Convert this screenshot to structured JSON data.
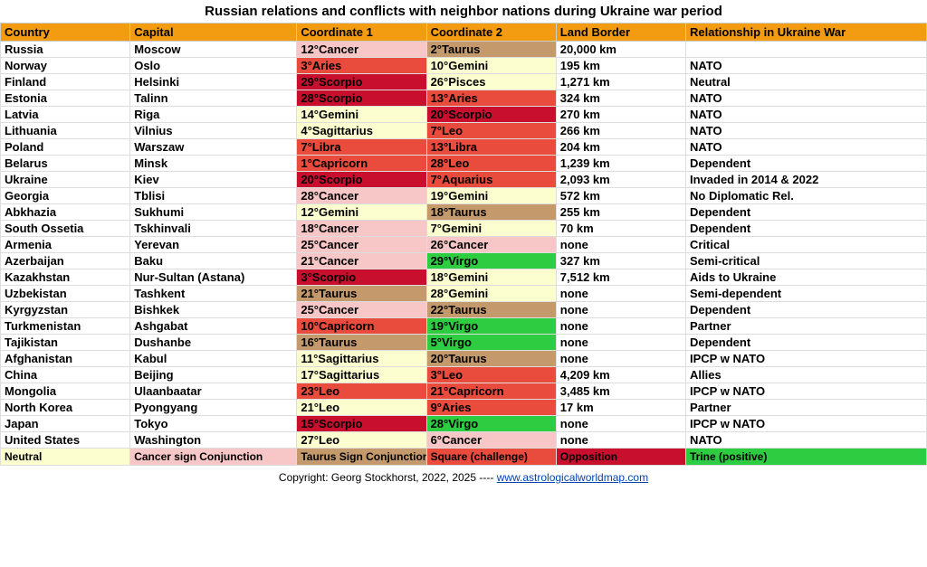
{
  "title": "Russian relations and conflicts with neighbor nations during Ukraine war period",
  "colors": {
    "header_bg": "#f39c12",
    "neutral": "#fdfecf",
    "cancer_conj": "#f7c6c6",
    "taurus_conj": "#c49a6c",
    "square": "#e94b3c",
    "opposition": "#c8102e",
    "trine": "#2ecc40",
    "white": "#ffffff"
  },
  "col_widths": [
    "14%",
    "18%",
    "14%",
    "14%",
    "14%",
    "26%"
  ],
  "headers": [
    "Country",
    "Capital",
    "Coordinate 1",
    "Coordinate 2",
    "Land Border",
    "Relationship in Ukraine War"
  ],
  "rows": [
    {
      "c": [
        "Russia",
        "Moscow",
        "12°Cancer",
        "2°Taurus",
        "20,000 km",
        ""
      ],
      "bg": [
        "white",
        "white",
        "cancer_conj",
        "taurus_conj",
        "white",
        "white"
      ]
    },
    {
      "c": [
        "Norway",
        "Oslo",
        "3°Aries",
        "10°Gemini",
        "195 km",
        "NATO"
      ],
      "bg": [
        "white",
        "white",
        "square",
        "neutral",
        "white",
        "white"
      ]
    },
    {
      "c": [
        "Finland",
        "Helsinki",
        "29°Scorpio",
        "26°Pisces",
        "1,271 km",
        "Neutral"
      ],
      "bg": [
        "white",
        "white",
        "opposition",
        "neutral",
        "white",
        "white"
      ]
    },
    {
      "c": [
        "Estonia",
        "Talinn",
        "28°Scorpio",
        "13°Aries",
        "324 km",
        "NATO"
      ],
      "bg": [
        "white",
        "white",
        "opposition",
        "square",
        "white",
        "white"
      ]
    },
    {
      "c": [
        "Latvia",
        "Riga",
        "14°Gemini",
        "20°Scorpio",
        "270 km",
        "NATO"
      ],
      "bg": [
        "white",
        "white",
        "neutral",
        "opposition",
        "white",
        "white"
      ]
    },
    {
      "c": [
        "Lithuania",
        "Vilnius",
        "4°Sagittarius",
        "7°Leo",
        "266 km",
        "NATO"
      ],
      "bg": [
        "white",
        "white",
        "neutral",
        "square",
        "white",
        "white"
      ]
    },
    {
      "c": [
        "Poland",
        "Warszaw",
        "7°Libra",
        "13°Libra",
        "204 km",
        "NATO"
      ],
      "bg": [
        "white",
        "white",
        "square",
        "square",
        "white",
        "white"
      ]
    },
    {
      "c": [
        "Belarus",
        "Minsk",
        "1°Capricorn",
        "28°Leo",
        "1,239 km",
        "Dependent"
      ],
      "bg": [
        "white",
        "white",
        "square",
        "square",
        "white",
        "white"
      ]
    },
    {
      "c": [
        "Ukraine",
        "Kiev",
        "20°Scorpio",
        "7°Aquarius",
        "2,093 km",
        "Invaded in 2014 & 2022"
      ],
      "bg": [
        "white",
        "white",
        "opposition",
        "square",
        "white",
        "white"
      ]
    },
    {
      "c": [
        "Georgia",
        "Tblisi",
        "28°Cancer",
        "19°Gemini",
        "572 km",
        "No Diplomatic Rel."
      ],
      "bg": [
        "white",
        "white",
        "cancer_conj",
        "neutral",
        "white",
        "white"
      ]
    },
    {
      "c": [
        "Abkhazia",
        "Sukhumi",
        "12°Gemini",
        "18°Taurus",
        "255 km",
        "Dependent"
      ],
      "bg": [
        "white",
        "white",
        "neutral",
        "taurus_conj",
        "white",
        "white"
      ]
    },
    {
      "c": [
        "South Ossetia",
        "Tskhinvali",
        "18°Cancer",
        "7°Gemini",
        "70 km",
        "Dependent"
      ],
      "bg": [
        "white",
        "white",
        "cancer_conj",
        "neutral",
        "white",
        "white"
      ]
    },
    {
      "c": [
        "Armenia",
        "Yerevan",
        "25°Cancer",
        "26°Cancer",
        "none",
        "Critical"
      ],
      "bg": [
        "white",
        "white",
        "cancer_conj",
        "cancer_conj",
        "white",
        "white"
      ]
    },
    {
      "c": [
        "Azerbaijan",
        "Baku",
        "21°Cancer",
        "29°Virgo",
        "327 km",
        "Semi-critical"
      ],
      "bg": [
        "white",
        "white",
        "cancer_conj",
        "trine",
        "white",
        "white"
      ]
    },
    {
      "c": [
        "Kazakhstan",
        "Nur-Sultan (Astana)",
        "3°Scorpio",
        "18°Gemini",
        "7,512 km",
        "Aids to Ukraine"
      ],
      "bg": [
        "white",
        "white",
        "opposition",
        "neutral",
        "white",
        "white"
      ]
    },
    {
      "c": [
        "Uzbekistan",
        "Tashkent",
        "21°Taurus",
        "28°Gemini",
        "none",
        "Semi-dependent"
      ],
      "bg": [
        "white",
        "white",
        "taurus_conj",
        "neutral",
        "white",
        "white"
      ]
    },
    {
      "c": [
        "Kyrgyzstan",
        "Bishkek",
        "25°Cancer",
        "22°Taurus",
        "none",
        "Dependent"
      ],
      "bg": [
        "white",
        "white",
        "cancer_conj",
        "taurus_conj",
        "white",
        "white"
      ]
    },
    {
      "c": [
        "Turkmenistan",
        "Ashgabat",
        "10°Capricorn",
        "19°Virgo",
        "none",
        "Partner"
      ],
      "bg": [
        "white",
        "white",
        "square",
        "trine",
        "white",
        "white"
      ]
    },
    {
      "c": [
        "Tajikistan",
        "Dushanbe",
        "16°Taurus",
        "5°Virgo",
        "none",
        "Dependent"
      ],
      "bg": [
        "white",
        "white",
        "taurus_conj",
        "trine",
        "white",
        "white"
      ]
    },
    {
      "c": [
        "Afghanistan",
        "Kabul",
        "11°Sagittarius",
        "20°Taurus",
        "none",
        "IPCP w NATO"
      ],
      "bg": [
        "white",
        "white",
        "neutral",
        "taurus_conj",
        "white",
        "white"
      ]
    },
    {
      "c": [
        "China",
        "Beijing",
        "17°Sagittarius",
        "3°Leo",
        "4,209 km",
        "Allies"
      ],
      "bg": [
        "white",
        "white",
        "neutral",
        "square",
        "white",
        "white"
      ]
    },
    {
      "c": [
        "Mongolia",
        "Ulaanbaatar",
        "23°Leo",
        "21°Capricorn",
        "3,485 km",
        "IPCP w NATO"
      ],
      "bg": [
        "white",
        "white",
        "square",
        "square",
        "white",
        "white"
      ]
    },
    {
      "c": [
        "North Korea",
        "Pyongyang",
        "21°Leo",
        "9°Aries",
        "17 km",
        "Partner"
      ],
      "bg": [
        "white",
        "white",
        "neutral",
        "square",
        "white",
        "white"
      ]
    },
    {
      "c": [
        "Japan",
        "Tokyo",
        "15°Scorpio",
        "28°Virgo",
        "none",
        "IPCP w NATO"
      ],
      "bg": [
        "white",
        "white",
        "opposition",
        "trine",
        "white",
        "white"
      ]
    },
    {
      "c": [
        "United States",
        "Washington",
        "27°Leo",
        "6°Cancer",
        "none",
        "NATO"
      ],
      "bg": [
        "white",
        "white",
        "neutral",
        "cancer_conj",
        "white",
        "white"
      ]
    }
  ],
  "legend": [
    {
      "label": "Neutral",
      "bg": "neutral"
    },
    {
      "label": "Cancer sign Conjunction",
      "bg": "cancer_conj"
    },
    {
      "label": "Taurus Sign Conjunction",
      "bg": "taurus_conj"
    },
    {
      "label": "Square (challenge)",
      "bg": "square"
    },
    {
      "label": "Opposition",
      "bg": "opposition"
    },
    {
      "label": "Trine (positive)",
      "bg": "trine"
    }
  ],
  "footer": {
    "text": "Copyright: Georg Stockhorst, 2022, 2025  ---- ",
    "link_text": "www.astrologicalworldmap.com"
  }
}
